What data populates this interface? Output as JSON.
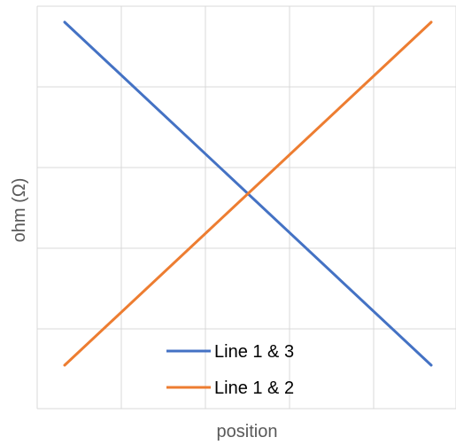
{
  "chart_data": {
    "type": "line",
    "xlabel": "position",
    "ylabel": "ohm (Ω)",
    "grid": true,
    "legend_placement": "bottom-center",
    "x": [
      0,
      1
    ],
    "series": [
      {
        "name": "Line 1 & 3",
        "color": "#4472C4",
        "values": [
          1.0,
          0.0
        ]
      },
      {
        "name": "Line 1 & 2",
        "color": "#ED7D31",
        "values": [
          0.0,
          1.0
        ]
      }
    ]
  }
}
